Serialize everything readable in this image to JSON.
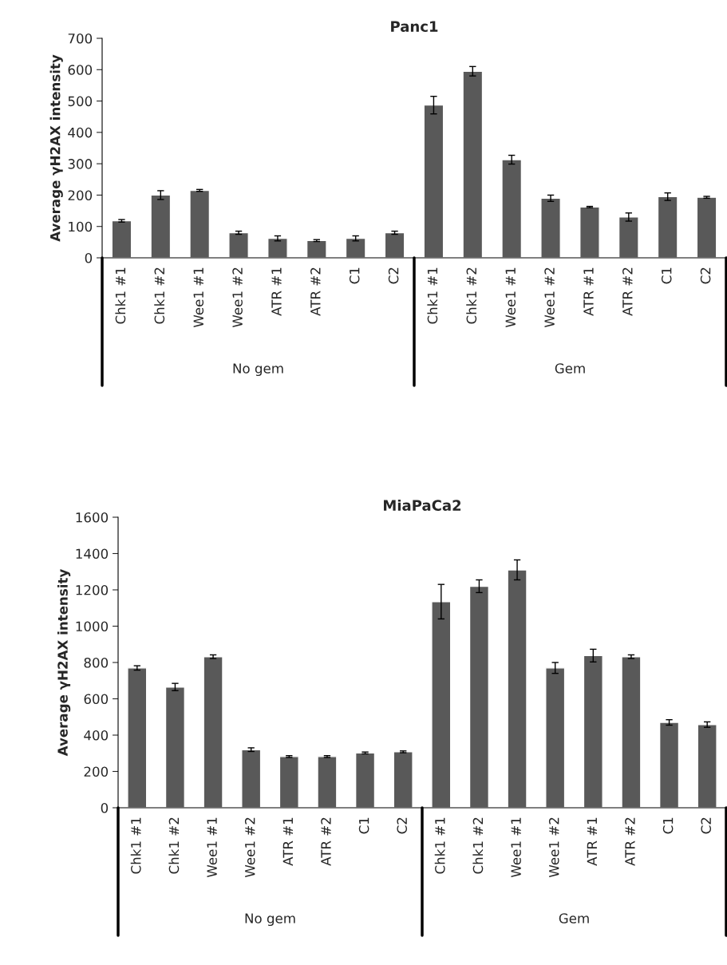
{
  "chart_data": [
    {
      "type": "bar",
      "title": "Panc1",
      "ylabel": "Average γH2AX intensity",
      "color": "#595959",
      "categories": [
        "Chk1 #1",
        "Chk1 #2",
        "Wee1 #1",
        "Wee1 #2",
        "ATR #1",
        "ATR #2",
        "C1",
        "C2",
        "Chk1 #1",
        "Chk1 #2",
        "Wee1 #1",
        "Wee1 #2",
        "ATR #1",
        "ATR #2",
        "C1",
        "C2"
      ],
      "values": [
        118,
        200,
        215,
        80,
        62,
        55,
        62,
        80,
        487,
        595,
        313,
        190,
        162,
        130,
        195,
        193
      ],
      "errors": [
        4,
        14,
        3,
        5,
        8,
        3,
        8,
        5,
        28,
        15,
        14,
        10,
        2,
        13,
        12,
        3
      ],
      "ylim": [
        0,
        700
      ],
      "yticks": [
        0,
        100,
        200,
        300,
        400,
        500,
        600,
        700
      ],
      "grid": false,
      "legend": false,
      "annotations": [
        "No gem",
        "Gem"
      ]
    },
    {
      "type": "bar",
      "title": "MiaPaCa2",
      "ylabel": "Average γH2AX intensity",
      "color": "#595959",
      "categories": [
        "Chk1 #1",
        "Chk1 #2",
        "Wee1 #1",
        "Wee1 #2",
        "ATR #1",
        "ATR #2",
        "C1",
        "C2",
        "Chk1 #1",
        "Chk1 #2",
        "Wee1 #1",
        "Wee1 #2",
        "ATR #1",
        "ATR #2",
        "C1",
        "C2"
      ],
      "values": [
        770,
        665,
        832,
        320,
        282,
        282,
        302,
        308,
        1135,
        1220,
        1310,
        770,
        838,
        832,
        470,
        458
      ],
      "errors": [
        12,
        20,
        10,
        10,
        5,
        5,
        5,
        5,
        95,
        35,
        55,
        30,
        35,
        10,
        15,
        15
      ],
      "ylim": [
        0,
        1600
      ],
      "yticks": [
        0,
        200,
        400,
        600,
        800,
        1000,
        1200,
        1400,
        1600
      ],
      "grid": false,
      "legend": false,
      "annotations": [
        "No gem",
        "Gem"
      ]
    }
  ]
}
